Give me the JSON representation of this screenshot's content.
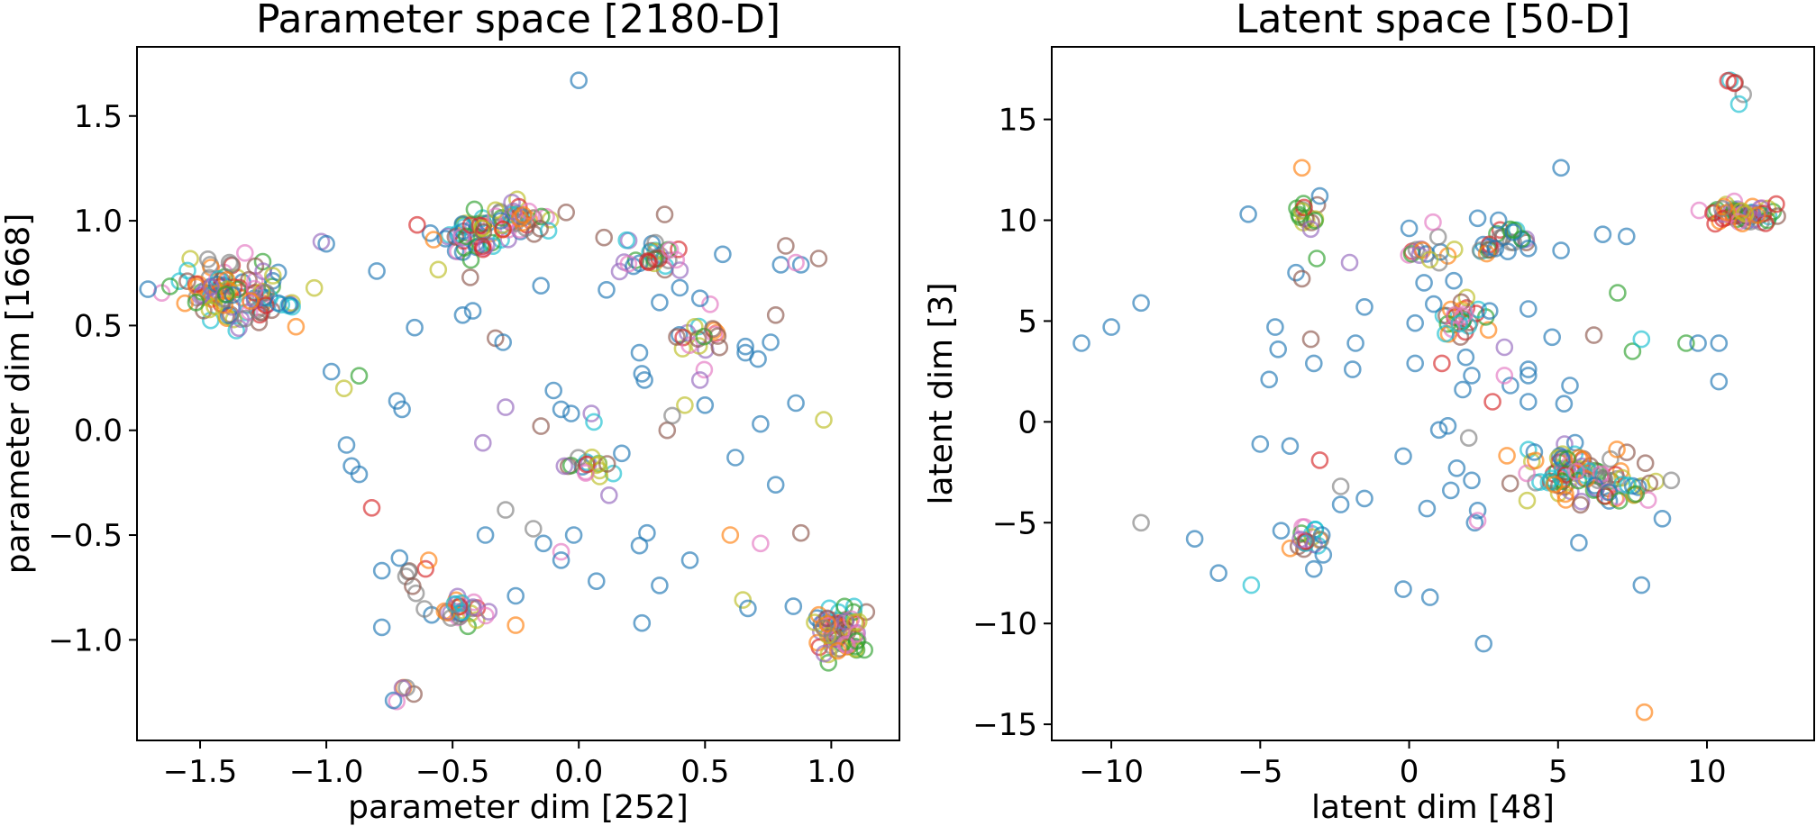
{
  "chart_data": [
    {
      "type": "scatter",
      "title": "Parameter space [2180-D]",
      "xlabel": "parameter dim [252]",
      "ylabel": "parameter dim [1668]",
      "xlim": [
        -1.75,
        1.27
      ],
      "ylim": [
        -1.48,
        1.83
      ],
      "xticks": [
        -1.5,
        -1.0,
        -0.5,
        0.0,
        0.5,
        1.0
      ],
      "xtick_labels": [
        "−1.5",
        "−1.0",
        "−0.5",
        "0.0",
        "0.5",
        "1.0"
      ],
      "yticks": [
        -1.0,
        -0.5,
        0.0,
        0.5,
        1.0,
        1.5
      ],
      "ytick_labels": [
        "−1.0",
        "−0.5",
        "0.0",
        "0.5",
        "1.0",
        "1.5"
      ],
      "marker": "hollow-circle",
      "grid": false,
      "clusters": [
        {
          "center": [
            -1.38,
            0.65
          ],
          "spread": [
            0.12,
            0.08
          ],
          "n": 120
        },
        {
          "center": [
            -0.42,
            0.91
          ],
          "spread": [
            0.07,
            0.05
          ],
          "n": 45
        },
        {
          "center": [
            -0.27,
            1.0
          ],
          "spread": [
            0.07,
            0.04
          ],
          "n": 45
        },
        {
          "center": [
            0.3,
            0.82
          ],
          "spread": [
            0.06,
            0.04
          ],
          "n": 30
        },
        {
          "center": [
            0.47,
            0.45
          ],
          "spread": [
            0.06,
            0.07
          ],
          "n": 20
        },
        {
          "center": [
            1.03,
            -0.97
          ],
          "spread": [
            0.05,
            0.06
          ],
          "n": 70
        },
        {
          "center": [
            -0.47,
            -0.87
          ],
          "spread": [
            0.05,
            0.03
          ],
          "n": 28
        },
        {
          "center": [
            0.05,
            -0.17
          ],
          "spread": [
            0.05,
            0.03
          ],
          "n": 18
        },
        {
          "center": [
            -0.67,
            -1.26
          ],
          "spread": [
            0.03,
            0.04
          ],
          "n": 6
        },
        {
          "center": [
            -0.66,
            -0.72
          ],
          "spread": [
            0.03,
            0.06
          ],
          "n": 8
        }
      ],
      "points": [
        [
          0.0,
          1.67
        ],
        [
          -0.05,
          1.04
        ],
        [
          0.34,
          1.03
        ],
        [
          0.1,
          0.92
        ],
        [
          0.57,
          0.84
        ],
        [
          0.11,
          0.67
        ],
        [
          -0.15,
          0.69
        ],
        [
          -0.65,
          0.49
        ],
        [
          -0.42,
          0.57
        ],
        [
          -0.46,
          0.55
        ],
        [
          -0.33,
          0.44
        ],
        [
          -0.3,
          0.42
        ],
        [
          -0.98,
          0.28
        ],
        [
          -0.93,
          0.2
        ],
        [
          -0.87,
          0.26
        ],
        [
          -0.8,
          0.76
        ],
        [
          -0.72,
          0.14
        ],
        [
          -0.7,
          0.1
        ],
        [
          -0.92,
          -0.07
        ],
        [
          -0.9,
          -0.17
        ],
        [
          -0.87,
          -0.21
        ],
        [
          -0.82,
          -0.37
        ],
        [
          -0.78,
          -0.67
        ],
        [
          -0.71,
          -0.61
        ],
        [
          -0.78,
          -0.94
        ],
        [
          -0.38,
          -0.06
        ],
        [
          -0.29,
          0.11
        ],
        [
          -0.15,
          0.02
        ],
        [
          -0.1,
          0.19
        ],
        [
          -0.07,
          0.1
        ],
        [
          -0.03,
          0.08
        ],
        [
          0.05,
          0.08
        ],
        [
          0.06,
          0.04
        ],
        [
          0.12,
          -0.31
        ],
        [
          -0.29,
          -0.38
        ],
        [
          -0.37,
          -0.5
        ],
        [
          -0.18,
          -0.47
        ],
        [
          -0.14,
          -0.54
        ],
        [
          -0.07,
          -0.58
        ],
        [
          -0.07,
          -0.62
        ],
        [
          -0.02,
          -0.5
        ],
        [
          0.07,
          -0.72
        ],
        [
          -0.25,
          -0.79
        ],
        [
          -0.25,
          -0.93
        ],
        [
          0.24,
          -0.55
        ],
        [
          0.25,
          -0.92
        ],
        [
          0.32,
          -0.74
        ],
        [
          0.44,
          -0.62
        ],
        [
          0.24,
          0.37
        ],
        [
          0.26,
          0.24
        ],
        [
          0.35,
          0.0
        ],
        [
          0.32,
          0.61
        ],
        [
          0.48,
          0.24
        ],
        [
          0.5,
          0.12
        ],
        [
          0.42,
          0.12
        ],
        [
          0.66,
          0.4
        ],
        [
          0.66,
          0.37
        ],
        [
          0.71,
          0.34
        ],
        [
          0.78,
          0.55
        ],
        [
          0.76,
          0.42
        ],
        [
          0.86,
          0.13
        ],
        [
          0.97,
          0.05
        ],
        [
          0.72,
          0.03
        ],
        [
          0.62,
          -0.13
        ],
        [
          0.6,
          -0.5
        ],
        [
          0.72,
          -0.54
        ],
        [
          0.88,
          -0.49
        ],
        [
          0.78,
          -0.26
        ],
        [
          0.65,
          -0.81
        ],
        [
          0.67,
          -0.85
        ],
        [
          0.85,
          -0.84
        ],
        [
          0.95,
          0.82
        ],
        [
          0.82,
          0.88
        ],
        [
          0.8,
          0.79
        ],
        [
          0.88,
          0.79
        ],
        [
          0.86,
          0.8
        ],
        [
          -1.02,
          0.9
        ],
        [
          -1.0,
          0.89
        ],
        [
          -0.43,
          0.73
        ],
        [
          0.37,
          0.07
        ],
        [
          0.27,
          -0.49
        ],
        [
          0.17,
          -0.11
        ],
        [
          0.25,
          0.27
        ],
        [
          0.4,
          0.68
        ],
        [
          0.48,
          0.63
        ],
        [
          -0.3,
          0.96
        ]
      ]
    },
    {
      "type": "scatter",
      "title": "Latent space [50-D]",
      "xlabel": "latent dim [48]",
      "ylabel": "latent dim [3]",
      "xlim": [
        -12.0,
        13.6
      ],
      "ylim": [
        -15.8,
        18.6
      ],
      "xticks": [
        -10,
        -5,
        0,
        5,
        10
      ],
      "xtick_labels": [
        "−10",
        "−5",
        "0",
        "5",
        "10"
      ],
      "yticks": [
        -15,
        -10,
        -5,
        0,
        5,
        10,
        15
      ],
      "ytick_labels": [
        "−15",
        "−10",
        "−5",
        "0",
        "5",
        "10",
        "15"
      ],
      "marker": "hollow-circle",
      "grid": false,
      "clusters": [
        {
          "center": [
            11.2,
            10.3
          ],
          "spread": [
            0.5,
            0.25
          ],
          "n": 60
        },
        {
          "center": [
            5.8,
            -2.5
          ],
          "spread": [
            1.1,
            0.7
          ],
          "n": 90
        },
        {
          "center": [
            7.2,
            -3.4
          ],
          "spread": [
            0.4,
            0.4
          ],
          "n": 15
        },
        {
          "center": [
            -3.5,
            10.2
          ],
          "spread": [
            0.2,
            0.3
          ],
          "n": 15
        },
        {
          "center": [
            1.7,
            5.1
          ],
          "spread": [
            0.5,
            0.5
          ],
          "n": 30
        },
        {
          "center": [
            3.4,
            9.2
          ],
          "spread": [
            0.3,
            0.2
          ],
          "n": 14
        },
        {
          "center": [
            0.6,
            8.3
          ],
          "spread": [
            0.5,
            0.4
          ],
          "n": 14
        },
        {
          "center": [
            -3.5,
            -5.9
          ],
          "spread": [
            0.3,
            0.4
          ],
          "n": 22
        },
        {
          "center": [
            11.0,
            16.5
          ],
          "spread": [
            0.3,
            0.4
          ],
          "n": 6
        },
        {
          "center": [
            2.6,
            8.7
          ],
          "spread": [
            0.4,
            0.2
          ],
          "n": 10
        }
      ],
      "points": [
        [
          -11.0,
          3.9
        ],
        [
          -10.0,
          4.7
        ],
        [
          -9.0,
          5.9
        ],
        [
          -9.0,
          -5.0
        ],
        [
          -7.2,
          -5.8
        ],
        [
          -6.4,
          -7.5
        ],
        [
          -5.4,
          10.3
        ],
        [
          -5.3,
          -8.1
        ],
        [
          -5.0,
          -1.1
        ],
        [
          -4.7,
          2.1
        ],
        [
          -4.5,
          4.7
        ],
        [
          -4.4,
          3.6
        ],
        [
          -4.3,
          -5.4
        ],
        [
          -4.0,
          -1.2
        ],
        [
          -3.8,
          7.4
        ],
        [
          -3.6,
          12.6
        ],
        [
          -3.6,
          7.1
        ],
        [
          -3.3,
          4.1
        ],
        [
          -3.2,
          2.9
        ],
        [
          -3.0,
          -1.9
        ],
        [
          -2.3,
          -3.2
        ],
        [
          -2.3,
          -4.1
        ],
        [
          -2.0,
          7.9
        ],
        [
          -1.9,
          2.6
        ],
        [
          -1.8,
          3.9
        ],
        [
          -1.5,
          5.7
        ],
        [
          -1.5,
          -3.8
        ],
        [
          -0.2,
          -1.7
        ],
        [
          -0.2,
          -8.3
        ],
        [
          0.2,
          2.9
        ],
        [
          0.2,
          4.9
        ],
        [
          0.5,
          6.9
        ],
        [
          0.6,
          -4.3
        ],
        [
          0.7,
          -8.7
        ],
        [
          0.8,
          9.9
        ],
        [
          1.0,
          -0.4
        ],
        [
          1.1,
          2.9
        ],
        [
          1.3,
          -0.2
        ],
        [
          1.4,
          -3.4
        ],
        [
          1.5,
          7.0
        ],
        [
          1.6,
          -2.3
        ],
        [
          1.8,
          1.6
        ],
        [
          1.9,
          3.2
        ],
        [
          2.0,
          -0.8
        ],
        [
          2.1,
          -2.9
        ],
        [
          2.2,
          -5.0
        ],
        [
          2.5,
          -11.0
        ],
        [
          2.7,
          5.5
        ],
        [
          2.8,
          1.0
        ],
        [
          2.9,
          8.6
        ],
        [
          3.2,
          3.7
        ],
        [
          3.4,
          1.8
        ],
        [
          3.5,
          9.4
        ],
        [
          4.0,
          8.6
        ],
        [
          4.0,
          1.0
        ],
        [
          4.0,
          2.6
        ],
        [
          4.0,
          5.6
        ],
        [
          4.2,
          -1.5
        ],
        [
          4.8,
          4.2
        ],
        [
          5.1,
          8.5
        ],
        [
          5.1,
          12.6
        ],
        [
          5.2,
          0.9
        ],
        [
          5.4,
          1.8
        ],
        [
          5.7,
          -6.0
        ],
        [
          6.2,
          4.3
        ],
        [
          6.5,
          9.3
        ],
        [
          7.0,
          6.4
        ],
        [
          7.3,
          9.2
        ],
        [
          7.5,
          3.5
        ],
        [
          7.8,
          4.1
        ],
        [
          7.8,
          -8.1
        ],
        [
          7.9,
          -14.4
        ],
        [
          8.5,
          -4.8
        ],
        [
          8.8,
          -2.9
        ],
        [
          9.3,
          3.9
        ],
        [
          9.7,
          3.9
        ],
        [
          10.4,
          2.0
        ],
        [
          10.4,
          3.9
        ],
        [
          0.0,
          9.6
        ],
        [
          2.3,
          10.1
        ],
        [
          3.0,
          10.0
        ],
        [
          -3.0,
          11.2
        ],
        [
          -3.1,
          8.1
        ],
        [
          -3.2,
          -7.3
        ],
        [
          2.1,
          2.3
        ],
        [
          3.2,
          2.3
        ],
        [
          4.0,
          2.3
        ],
        [
          2.3,
          -4.4
        ],
        [
          2.3,
          -4.9
        ]
      ]
    }
  ],
  "colors": [
    "#1f77b4",
    "#ff7f0e",
    "#2ca02c",
    "#d62728",
    "#9467bd",
    "#8c564b",
    "#e377c2",
    "#7f7f7f",
    "#bcbd22",
    "#17becf"
  ]
}
